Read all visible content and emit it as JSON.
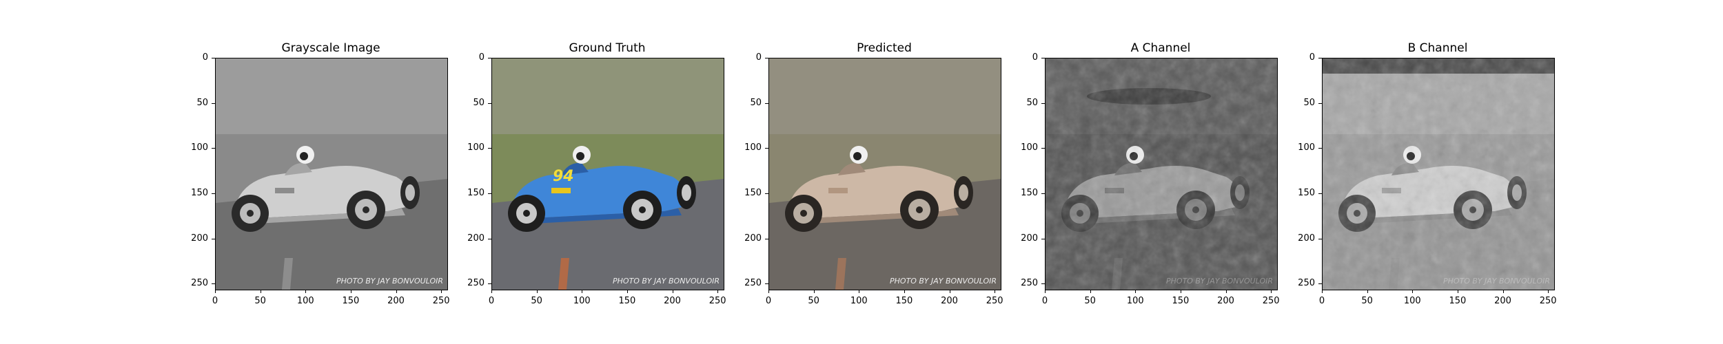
{
  "figure": {
    "panels": [
      {
        "id": "grayscale",
        "title": "Grayscale Image",
        "watermark": "PHOTO BY JAY BONVOULOIR"
      },
      {
        "id": "ground-truth",
        "title": "Ground Truth",
        "watermark": "PHOTO BY JAY BONVOULOIR",
        "car_number": "94"
      },
      {
        "id": "predicted",
        "title": "Predicted",
        "watermark": "PHOTO BY JAY BONVOULOIR"
      },
      {
        "id": "a-channel",
        "title": "A Channel",
        "watermark": "PHOTO BY JAY BONVOULOIR"
      },
      {
        "id": "b-channel",
        "title": "B Channel",
        "watermark": "PHOTO BY JAY BONVOULOIR"
      }
    ],
    "x_ticks": [
      "0",
      "50",
      "100",
      "150",
      "200",
      "250"
    ],
    "y_ticks": [
      "0",
      "50",
      "100",
      "150",
      "200",
      "250"
    ],
    "axis_range": [
      0,
      255
    ]
  }
}
